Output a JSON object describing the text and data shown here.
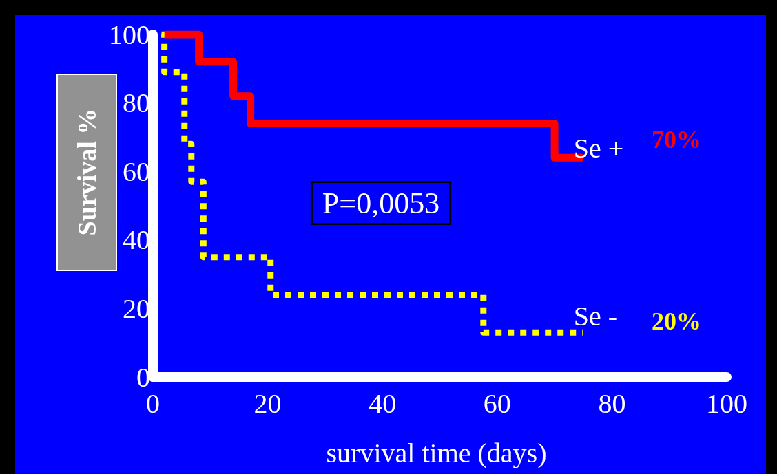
{
  "chart_data": {
    "type": "step",
    "xlabel": "survival time (days)",
    "ylabel": "Survival %",
    "xlim": [
      0,
      100
    ],
    "xticks": [
      0,
      20,
      40,
      60,
      80,
      100
    ],
    "ylim": [
      0,
      100
    ],
    "yticks": [
      0,
      20,
      40,
      60,
      80,
      100
    ],
    "grid": false,
    "legend": false,
    "marker": "none",
    "series": [
      {
        "name": "Se +",
        "color": "#ff0000",
        "line_style": "solid",
        "x": [
          2,
          8,
          14,
          17,
          70,
          75
        ],
        "values": [
          100,
          92,
          82,
          74,
          64,
          64
        ]
      },
      {
        "name": "Se -",
        "color": "#ffff00",
        "line_style": "dotted",
        "x": [
          1.5,
          2,
          5.5,
          6.7,
          8.8,
          20.5,
          57.6,
          75
        ],
        "values": [
          100,
          89,
          68,
          57,
          35,
          24,
          13,
          13
        ]
      }
    ],
    "annotations": [
      "P=0,0053",
      "70%",
      "20%"
    ]
  }
}
